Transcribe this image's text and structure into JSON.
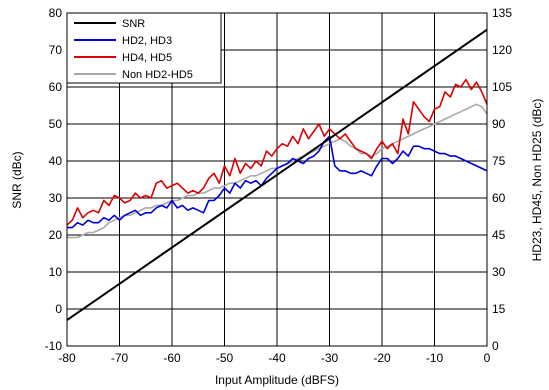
{
  "chart_data": {
    "type": "line",
    "xlabel": "Input Amplitude (dBFS)",
    "ylabel": "SNR (dBc)",
    "y2label": "HD23, HD45, Non HD25 (dBc)",
    "xlim": [
      -80,
      0
    ],
    "ylim": [
      -10,
      80
    ],
    "y2lim": [
      0,
      135
    ],
    "xticks": [
      -80,
      -70,
      -60,
      -50,
      -40,
      -30,
      -20,
      -10,
      0
    ],
    "yticks": [
      -10,
      0,
      10,
      20,
      30,
      40,
      50,
      60,
      70,
      80
    ],
    "y2ticks": [
      0,
      15,
      30,
      45,
      60,
      75,
      90,
      105,
      120,
      135
    ],
    "grid": true,
    "legend_position": "top-left",
    "series": [
      {
        "name": "SNR",
        "axis": "left",
        "color": "#000000",
        "x": [
          -80,
          0
        ],
        "y": [
          -3,
          75.5
        ]
      },
      {
        "name": "HD2, HD3",
        "axis": "right",
        "color": "#0000dd",
        "x": [
          -80,
          -79,
          -78,
          -77,
          -76,
          -75,
          -74,
          -73,
          -72,
          -71,
          -70,
          -69,
          -68,
          -67,
          -66,
          -65,
          -64,
          -63,
          -62,
          -61,
          -60,
          -59,
          -58,
          -57,
          -56,
          -55,
          -54,
          -53,
          -52,
          -51,
          -50,
          -49,
          -48,
          -47,
          -46,
          -45,
          -44,
          -43,
          -42,
          -41,
          -40,
          -39,
          -38,
          -37,
          -36,
          -35,
          -34,
          -33,
          -32,
          -31,
          -30,
          -29,
          -28,
          -27,
          -26,
          -25,
          -24,
          -23,
          -22,
          -21,
          -20,
          -19,
          -18,
          -17,
          -16,
          -15,
          -14,
          -13,
          -12,
          -11,
          -10,
          -9,
          -8,
          -7,
          -6,
          -5,
          -4,
          -3,
          -2,
          -1,
          0
        ],
        "y": [
          48,
          48,
          50,
          49,
          51,
          50,
          50,
          52,
          51,
          53,
          51,
          53,
          54,
          55,
          53,
          54,
          54,
          56,
          57,
          56,
          59,
          56,
          57,
          55,
          56,
          55,
          54,
          59,
          59,
          61,
          64,
          62,
          66,
          64,
          67,
          66,
          67,
          65,
          68,
          70,
          72,
          73,
          74,
          76,
          75,
          74,
          76,
          77,
          79,
          83,
          85,
          73,
          71,
          71,
          70,
          70,
          71,
          70,
          69,
          73,
          76,
          76,
          74,
          76,
          79,
          77,
          81,
          81,
          80,
          80,
          79,
          78,
          78,
          77,
          77,
          76,
          75,
          74,
          73,
          72,
          71
        ]
      },
      {
        "name": "HD4, HD5",
        "axis": "right",
        "color": "#dd0000",
        "x": [
          -80,
          -79,
          -78,
          -77,
          -76,
          -75,
          -74,
          -73,
          -72,
          -71,
          -70,
          -69,
          -68,
          -67,
          -66,
          -65,
          -64,
          -63,
          -62,
          -61,
          -60,
          -59,
          -58,
          -57,
          -56,
          -55,
          -54,
          -53,
          -52,
          -51,
          -50,
          -49,
          -48,
          -47,
          -46,
          -45,
          -44,
          -43,
          -42,
          -41,
          -40,
          -39,
          -38,
          -37,
          -36,
          -35,
          -34,
          -33,
          -32,
          -31,
          -30,
          -29,
          -28,
          -27,
          -26,
          -25,
          -24,
          -23,
          -22,
          -21,
          -20,
          -19,
          -18,
          -17,
          -16,
          -15,
          -14,
          -13,
          -12,
          -11,
          -10,
          -9,
          -8,
          -7,
          -6,
          -5,
          -4,
          -3,
          -2,
          -1,
          0
        ],
        "y": [
          49,
          51,
          56,
          52,
          54,
          55,
          54,
          59,
          57,
          61,
          60,
          58,
          59,
          62,
          60,
          61,
          60,
          66,
          67,
          64,
          65,
          66,
          64,
          62,
          63,
          62,
          64,
          68,
          70,
          66,
          73,
          69,
          76,
          70,
          74,
          72,
          75,
          73,
          79,
          77,
          80,
          82,
          81,
          85,
          82,
          88,
          84,
          87,
          90,
          85,
          88,
          86,
          84,
          86,
          83,
          80,
          79,
          78,
          76,
          80,
          83,
          80,
          82,
          78,
          92,
          86,
          99,
          96,
          93,
          91,
          96,
          97,
          103,
          101,
          106,
          105,
          108,
          104,
          107,
          103,
          98
        ]
      },
      {
        "name": "Non HD2-HD5",
        "axis": "right",
        "color": "#a9a9a9",
        "x": [
          -80,
          -79,
          -78,
          -77,
          -76,
          -75,
          -74,
          -73,
          -72,
          -71,
          -70,
          -69,
          -68,
          -67,
          -66,
          -65,
          -64,
          -63,
          -62,
          -61,
          -60,
          -59,
          -58,
          -57,
          -56,
          -55,
          -54,
          -53,
          -52,
          -51,
          -50,
          -49,
          -48,
          -47,
          -46,
          -45,
          -44,
          -43,
          -42,
          -41,
          -40,
          -39,
          -38,
          -37,
          -36,
          -35,
          -34,
          -33,
          -32,
          -31,
          -30,
          -29,
          -28,
          -27,
          -26,
          -25,
          -24,
          -23,
          -22,
          -21,
          -20,
          -19,
          -18,
          -17,
          -16,
          -15,
          -14,
          -13,
          -12,
          -11,
          -10,
          -9,
          -8,
          -7,
          -6,
          -5,
          -4,
          -3,
          -2,
          -1,
          0
        ],
        "y": [
          44,
          44,
          44,
          45,
          46,
          46,
          47,
          48,
          50,
          51,
          52,
          53,
          53,
          54,
          55,
          56,
          56,
          57,
          57,
          58,
          59,
          59,
          60,
          61,
          61,
          62,
          62,
          63,
          64,
          64,
          65,
          66,
          66,
          67,
          68,
          69,
          69,
          70,
          71,
          72,
          72,
          73,
          74,
          75,
          76,
          77,
          78,
          79,
          80,
          81,
          82,
          83,
          84,
          83,
          81,
          80,
          78,
          78,
          77,
          78,
          80,
          81,
          82,
          83,
          84,
          85,
          86,
          87,
          88,
          89,
          90,
          91,
          92,
          93,
          94,
          95,
          96,
          97,
          98,
          97,
          94
        ]
      }
    ]
  }
}
